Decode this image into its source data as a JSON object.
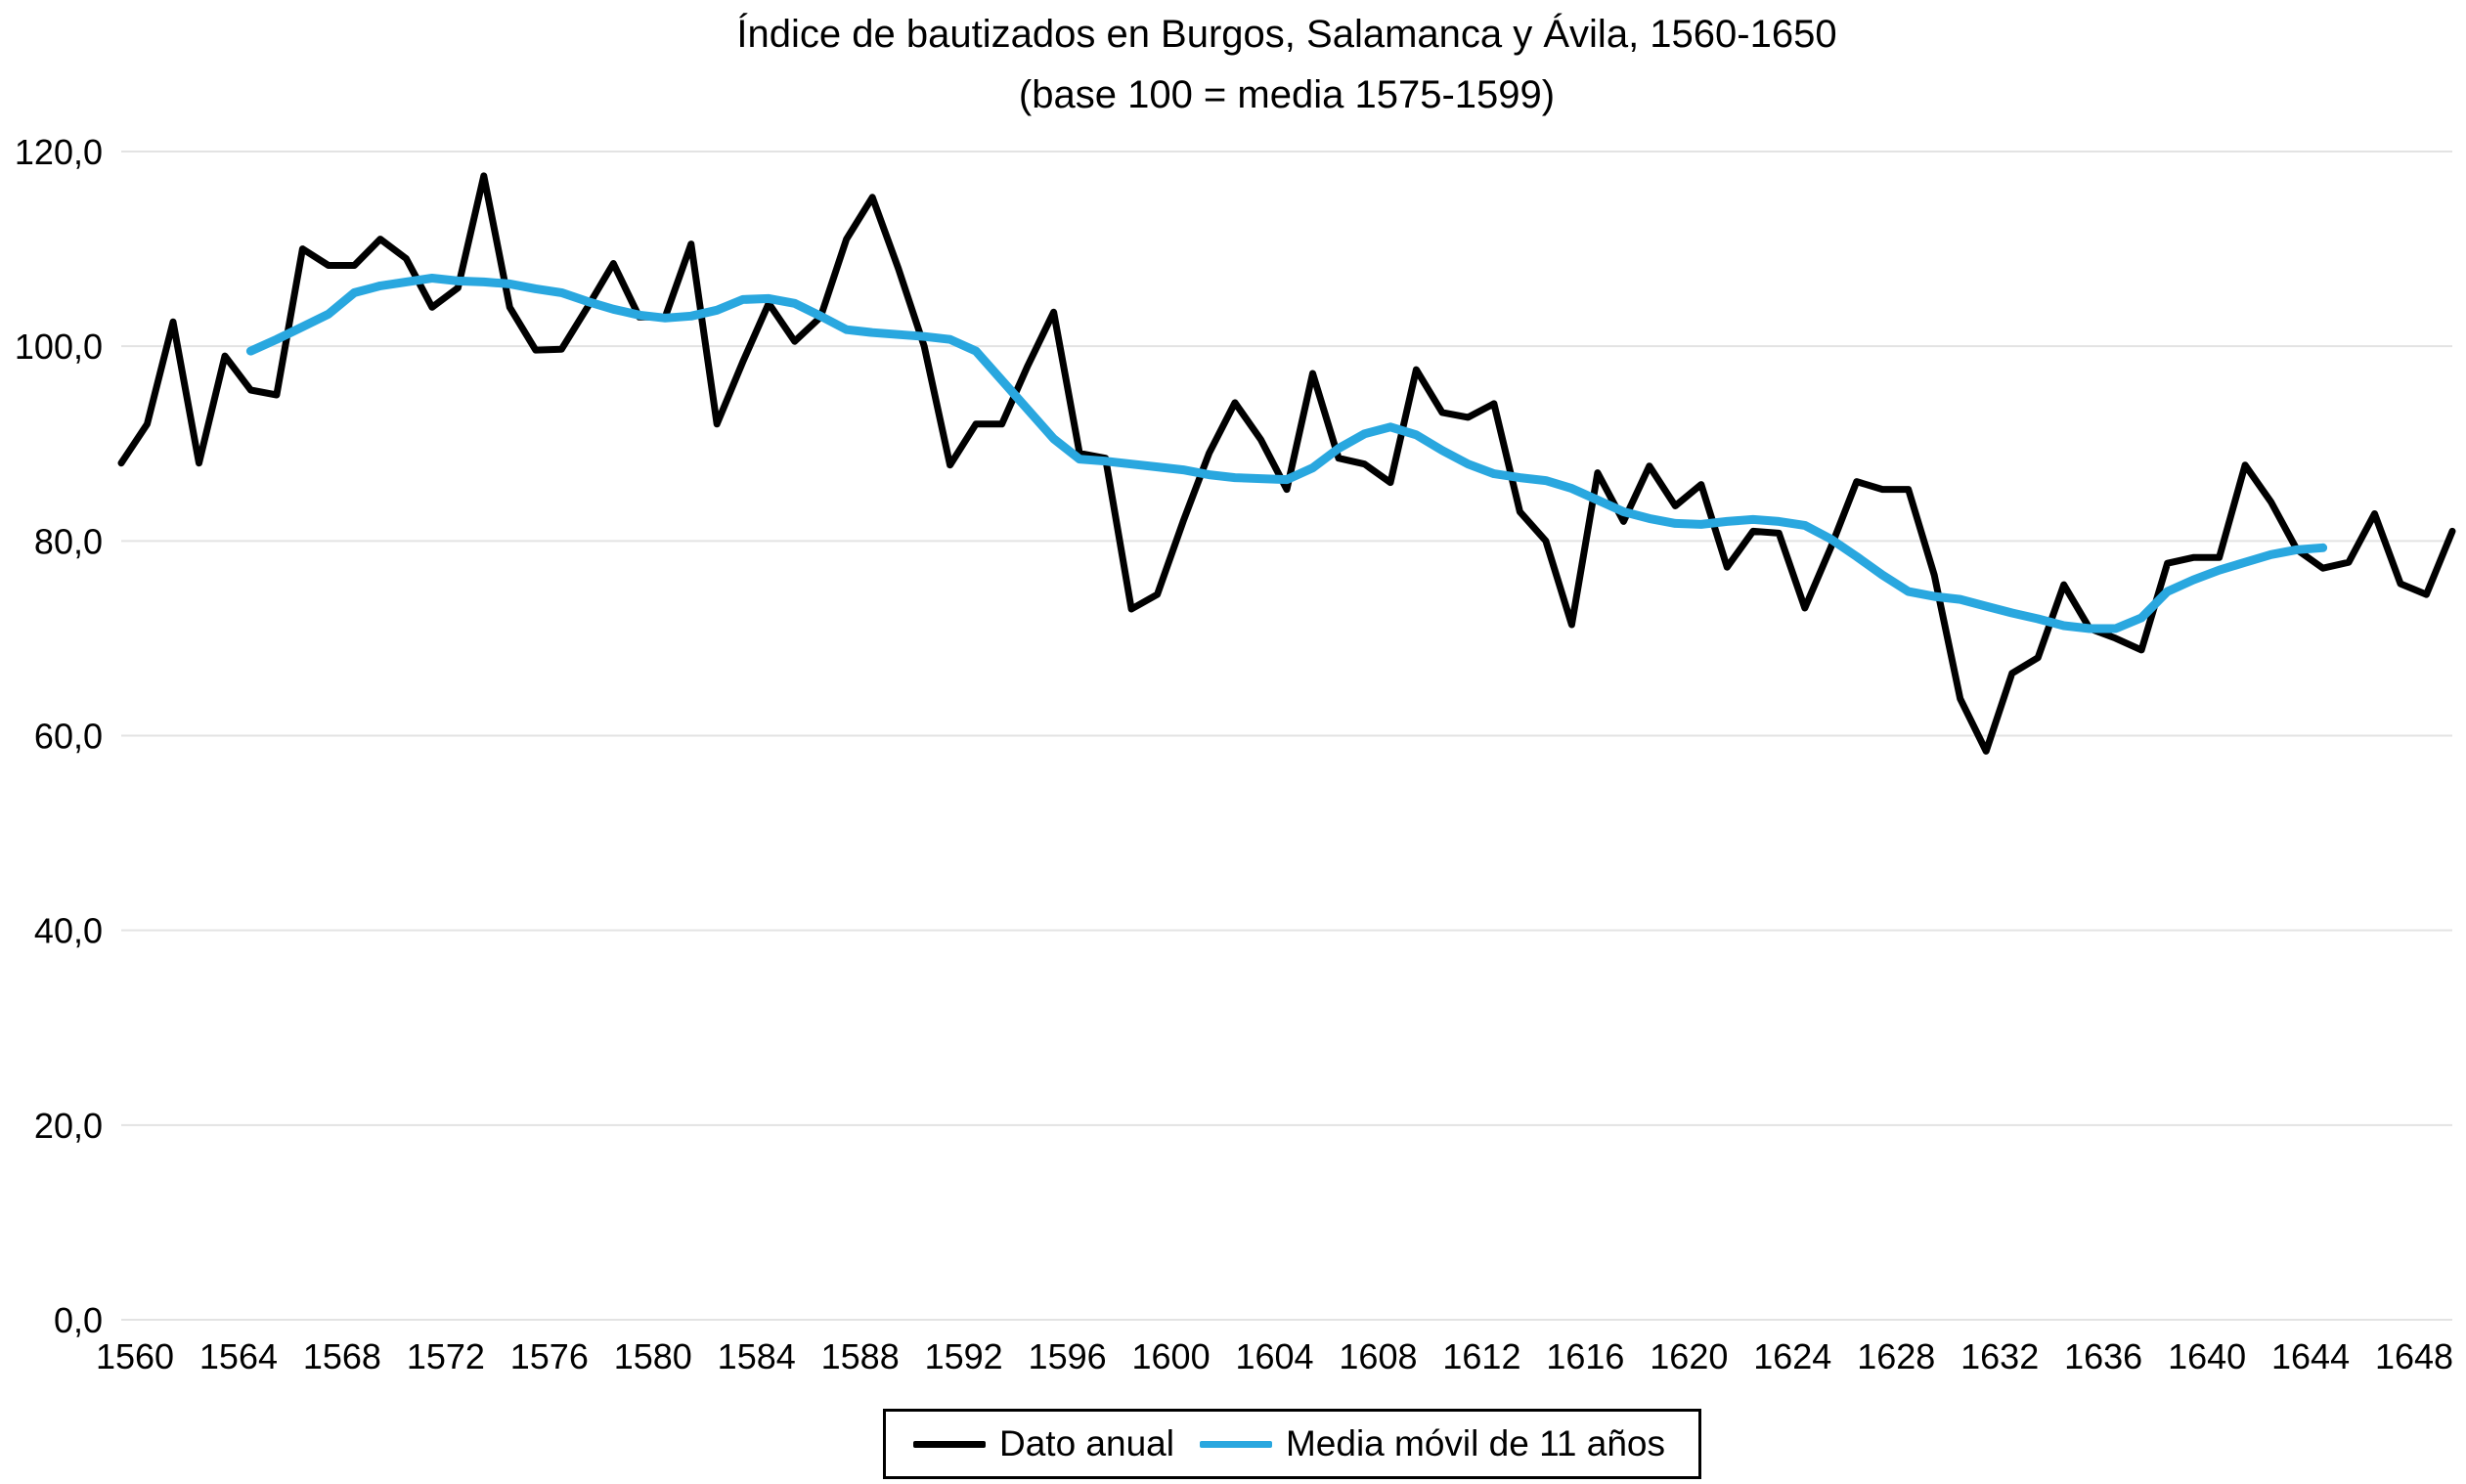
{
  "chart_data": {
    "type": "line",
    "title": "Índice de bautizados en Burgos, Salamanca y Ávila, 1560-1650",
    "subtitle": "(base 100 = media 1575-1599)",
    "xlabel": "",
    "ylabel": "",
    "xlim": [
      1560,
      1650
    ],
    "ylim": [
      0,
      120
    ],
    "grid": "horizontal-only",
    "legend_position": "bottom-center",
    "y_ticks": [
      0,
      20,
      40,
      60,
      80,
      100,
      120
    ],
    "y_tick_labels": [
      "0,0",
      "20,0",
      "40,0",
      "60,0",
      "80,0",
      "100,0",
      "120,0"
    ],
    "x_ticks": [
      1560,
      1564,
      1568,
      1572,
      1576,
      1580,
      1584,
      1588,
      1592,
      1596,
      1600,
      1604,
      1608,
      1612,
      1616,
      1620,
      1624,
      1628,
      1632,
      1636,
      1640,
      1644,
      1648
    ],
    "gridline_color": "#E3E3E3",
    "series": [
      {
        "name": "Dato anual",
        "color": "#000000",
        "stroke_width": 7,
        "x_first": 1560,
        "values": [
          88,
          92,
          102.5,
          88,
          99,
          95.5,
          95,
          110,
          108.3,
          108.3,
          111,
          109,
          104,
          106,
          117.5,
          104,
          99.6,
          99.7,
          104,
          108.5,
          103,
          103,
          110.5,
          92,
          98.4,
          104.4,
          100.5,
          103,
          111,
          115.3,
          108,
          100,
          87.8,
          92,
          92,
          98,
          103.5,
          89,
          88.5,
          73,
          74.5,
          82,
          89,
          94.2,
          90.4,
          85.3,
          97.2,
          88.5,
          87.9,
          86,
          97.6,
          93.2,
          92.7,
          94.1,
          83,
          80,
          71.4,
          87,
          82,
          87.7,
          83.6,
          85.8,
          77.3,
          81,
          80.8,
          73.1,
          79.3,
          86.1,
          85.3,
          85.3,
          76.5,
          63.8,
          58.4,
          66.4,
          68,
          75.5,
          71,
          70,
          68.8,
          77.7,
          78.3,
          78.3,
          87.8,
          84,
          79.1,
          77.2,
          77.8,
          82.8,
          75.6,
          74.5,
          81
        ]
      },
      {
        "name": "Media móvil de 11 años",
        "color": "#29A7DF",
        "stroke_width": 9,
        "x_first": 1565,
        "values": [
          99.5,
          100.7,
          102,
          103.3,
          105.5,
          106.2,
          106.6,
          107,
          106.7,
          106.6,
          106.4,
          105.9,
          105.5,
          104.6,
          103.8,
          103.2,
          102.9,
          103.1,
          103.7,
          104.8,
          104.9,
          104.4,
          103.1,
          101.7,
          101.4,
          101.2,
          101.0,
          100.7,
          99.5,
          96.5,
          93.5,
          90.5,
          88.4,
          88.2,
          87.9,
          87.6,
          87.3,
          86.8,
          86.5,
          86.4,
          86.3,
          87.5,
          89.5,
          91.0,
          91.7,
          90.9,
          89.3,
          87.9,
          86.9,
          86.5,
          86.2,
          85.4,
          84.2,
          83.0,
          82.3,
          81.8,
          81.7,
          82.0,
          82.2,
          82.0,
          81.6,
          80.2,
          78.4,
          76.5,
          74.8,
          74.3,
          74.0,
          73.3,
          72.6,
          72.0,
          71.3,
          71.0,
          71.0,
          72.1,
          74.8,
          76.0,
          77.0,
          77.8,
          78.6,
          79.1,
          79.3
        ]
      }
    ]
  }
}
